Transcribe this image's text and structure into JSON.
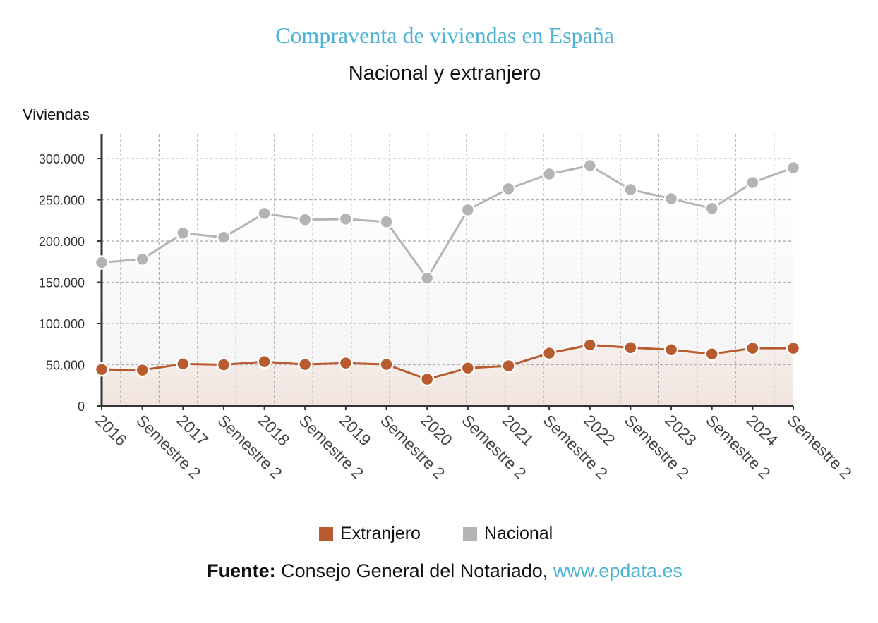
{
  "chart_data": {
    "type": "line",
    "title": "Compraventa de viviendas en España",
    "subtitle": "Nacional y extranjero",
    "ylabel": "Viviendas",
    "xlabel": "",
    "ylim": [
      0,
      330000
    ],
    "yticks": [
      0,
      50000,
      100000,
      150000,
      200000,
      250000,
      300000
    ],
    "ytick_labels": [
      "0",
      "50.000",
      "100.000",
      "150.000",
      "200.000",
      "250.000",
      "300.000"
    ],
    "grid": true,
    "legend": "bottom",
    "categories": [
      "2016",
      "Semestre 2",
      "2017",
      "Semestre 2",
      "2018",
      "Semestre 2",
      "2019",
      "Semestre 2",
      "2020",
      "Semestre 2",
      "2021",
      "Semestre 2",
      "2022",
      "Semestre 2",
      "2023",
      "Semestre 2",
      "2024",
      "Semestre 2"
    ],
    "series": [
      {
        "name": "Extranjero",
        "color": "#b85b2e",
        "values": [
          44300,
          43500,
          51000,
          50000,
          53700,
          50300,
          52000,
          50300,
          32400,
          46000,
          48600,
          64000,
          74000,
          70700,
          68200,
          63000,
          70000,
          70000
        ]
      },
      {
        "name": "Nacional",
        "color": "#b4b5b3",
        "values": [
          174000,
          178000,
          209600,
          204500,
          233500,
          225900,
          226700,
          223300,
          155000,
          237800,
          263400,
          281300,
          291500,
          262500,
          251400,
          239500,
          271000,
          289000
        ]
      }
    ]
  },
  "source": {
    "label": "Fuente:",
    "text": " Consejo General del Notariado, ",
    "link": "www.epdata.es"
  }
}
